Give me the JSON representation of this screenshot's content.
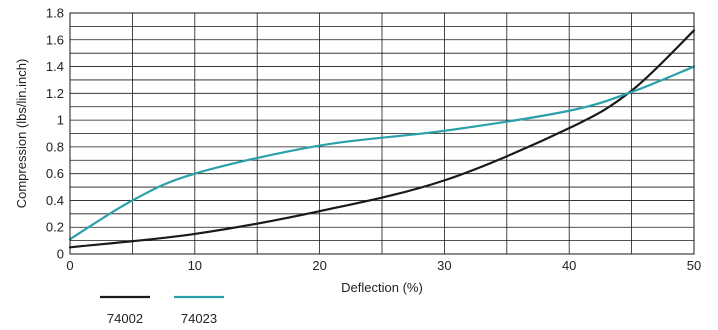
{
  "chart_data": {
    "type": "line",
    "title": "",
    "xlabel": "Deflection (%)",
    "ylabel": "Compression (lbs/lin.inch)",
    "xlim": [
      0,
      50
    ],
    "ylim": [
      0,
      1.8
    ],
    "x_ticks": [
      "0",
      "10",
      "20",
      "30",
      "40",
      "50"
    ],
    "y_ticks": [
      "0",
      "0.2",
      "0.4",
      "0.6",
      "0.8",
      "1",
      "1.2",
      "1.4",
      "1.6",
      "1.8"
    ],
    "grid": true,
    "legend_position": "bottom-left",
    "series": [
      {
        "name": "74002",
        "color": "#1a1a1a",
        "x": [
          0,
          10,
          20,
          30,
          40,
          45,
          50
        ],
        "y": [
          0.05,
          0.15,
          0.32,
          0.55,
          0.94,
          1.22,
          1.67
        ]
      },
      {
        "name": "74023",
        "color": "#2aa0aa",
        "x": [
          0,
          5,
          10,
          20,
          30,
          40,
          45,
          50
        ],
        "y": [
          0.11,
          0.4,
          0.6,
          0.81,
          0.92,
          1.07,
          1.21,
          1.4
        ]
      }
    ]
  }
}
